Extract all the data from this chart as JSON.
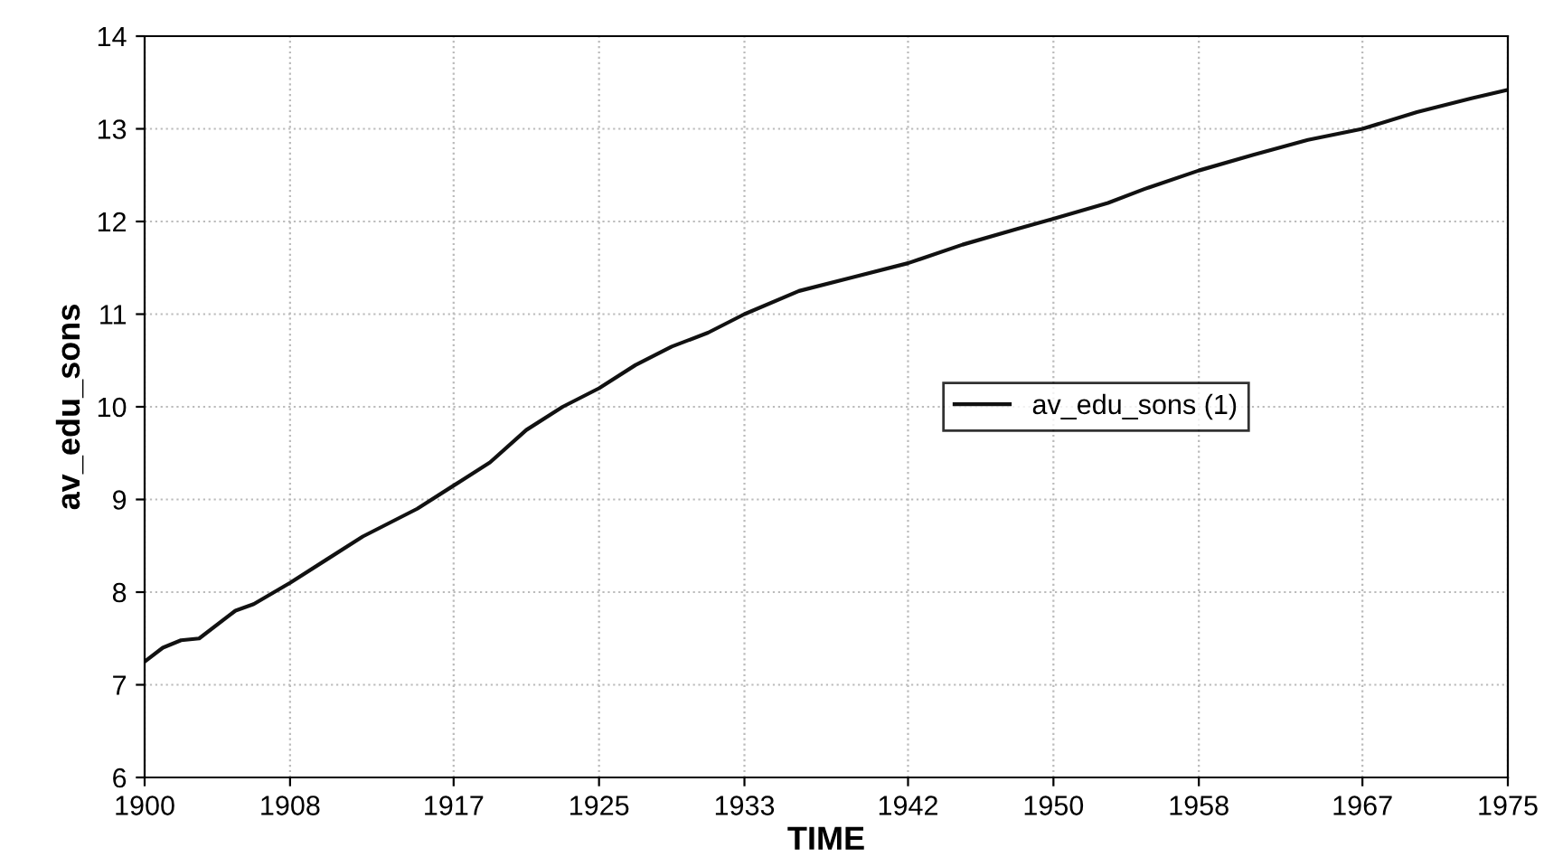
{
  "chart_data": {
    "type": "line",
    "xlabel": "TIME",
    "ylabel": "av_edu_sons",
    "x": [
      1900,
      1901,
      1902,
      1903,
      1905,
      1906,
      1908,
      1910,
      1912,
      1915,
      1917,
      1919,
      1921,
      1923,
      1925,
      1927,
      1929,
      1931,
      1933,
      1936,
      1939,
      1942,
      1945,
      1948,
      1950,
      1953,
      1955,
      1958,
      1961,
      1964,
      1967,
      1970,
      1973,
      1975
    ],
    "series": [
      {
        "name": "av_edu_sons (1)",
        "color": "#111111",
        "values": [
          7.25,
          7.4,
          7.48,
          7.5,
          7.8,
          7.87,
          8.1,
          8.35,
          8.6,
          8.9,
          9.15,
          9.4,
          9.75,
          10.0,
          10.2,
          10.45,
          10.65,
          10.8,
          11.0,
          11.25,
          11.4,
          11.55,
          11.75,
          11.92,
          12.03,
          12.2,
          12.35,
          12.55,
          12.72,
          12.88,
          13.0,
          13.18,
          13.33,
          13.42
        ]
      }
    ],
    "xlim": [
      1900,
      1975
    ],
    "xticks": [
      1900,
      1908,
      1917,
      1925,
      1933,
      1942,
      1950,
      1958,
      1967,
      1975
    ],
    "ylim": [
      6,
      14
    ],
    "yticks": [
      6,
      7,
      8,
      9,
      10,
      11,
      12,
      13,
      14
    ],
    "grid": true,
    "legend": "center right",
    "marker": "none",
    "line_style": "solid"
  }
}
